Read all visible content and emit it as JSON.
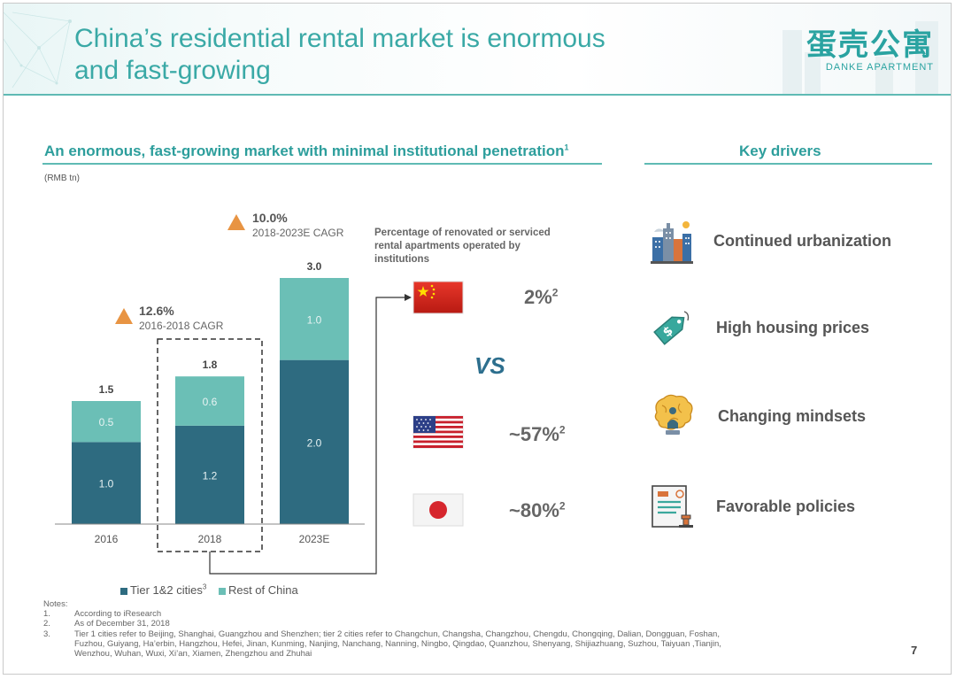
{
  "title": {
    "line1": "China’s residential rental market is enormous",
    "line2": "and fast-growing"
  },
  "logo": {
    "cn": "蛋壳公寓",
    "en": "DANKE APARTMENT"
  },
  "left_section": {
    "title": "An enormous, fast-growing market with minimal institutional penetration",
    "title_sup": "1",
    "unit": "(RMB tn)"
  },
  "cagr": [
    {
      "value": "12.6%",
      "label": "2016-2018 CAGR"
    },
    {
      "value": "10.0%",
      "label": "2018-2023E CAGR"
    }
  ],
  "chart_data": {
    "type": "bar",
    "stacked": true,
    "categories": [
      "2016",
      "2018",
      "2023E"
    ],
    "series": [
      {
        "name": "Tier 1&2 cities",
        "name_sup": "3",
        "values": [
          1.0,
          1.2,
          2.0
        ],
        "color": "#2e6b80"
      },
      {
        "name": "Rest of China",
        "values": [
          0.5,
          0.6,
          1.0
        ],
        "color": "#6bbfb6"
      }
    ],
    "totals": [
      "1.5",
      "1.8",
      "3.0"
    ],
    "value_labels": [
      [
        "1.0",
        "1.2",
        "2.0"
      ],
      [
        "0.5",
        "0.6",
        "1.0"
      ]
    ],
    "ylim": [
      0,
      3.0
    ],
    "grid": false,
    "legend": "bottom",
    "highlighted_category": "2018"
  },
  "penetration": {
    "caption": [
      "Percentage of renovated or serviced",
      "rental apartments operated by",
      "institutions"
    ],
    "vs": "VS",
    "rows": [
      {
        "country": "China",
        "flag": "china-flag-icon",
        "value": "2%",
        "sup": "2"
      },
      {
        "country": "United States",
        "flag": "usa-flag-icon",
        "value": "~57%",
        "sup": "2"
      },
      {
        "country": "Japan",
        "flag": "japan-flag-icon",
        "value": "~80%",
        "sup": "2"
      }
    ]
  },
  "right_section": {
    "title": "Key drivers",
    "drivers": [
      {
        "label": "Continued urbanization",
        "icon": "city-buildings-icon"
      },
      {
        "label": "High housing prices",
        "icon": "price-tag-icon"
      },
      {
        "label": "Changing mindsets",
        "icon": "brain-person-icon"
      },
      {
        "label": "Favorable policies",
        "icon": "policy-document-icon"
      }
    ]
  },
  "notes": {
    "heading": "Notes:",
    "items": [
      {
        "num": "1.",
        "text": "According to iResearch"
      },
      {
        "num": "2.",
        "text": "As of December 31, 2018"
      },
      {
        "num": "3.",
        "text": "Tier 1 cities refer to Beijing, Shanghai, Guangzhou and Shenzhen; tier 2 cities refer to Changchun, Changsha, Changzhou, Chengdu, Chongqing, Dalian, Dongguan, Foshan,",
        "cont": [
          "Fuzhou, Guiyang, Ha’erbin, Hangzhou, Hefei, Jinan, Kunming, Nanjing, Nanchang, Nanning, Ningbo, Qingdao, Quanzhou, Shenyang, Shijiazhuang, Suzhou, Taiyuan ,Tianjin,",
          "Wenzhou, Wuhan, Wuxi, Xi’an, Xiamen, Zhengzhou and Zhuhai"
        ]
      }
    ]
  },
  "page_number": "7"
}
